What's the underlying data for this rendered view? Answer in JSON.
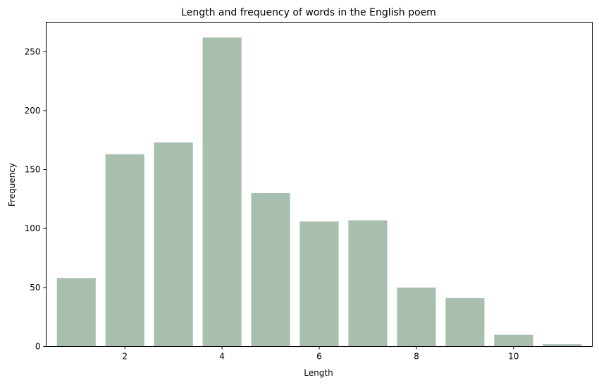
{
  "chart_data": {
    "type": "bar",
    "title": "Length and frequency of words in the English poem",
    "xlabel": "Length",
    "ylabel": "Frequency",
    "x": [
      1,
      2,
      3,
      4,
      5,
      6,
      7,
      8,
      9,
      10,
      11
    ],
    "values": [
      58,
      163,
      173,
      262,
      130,
      106,
      107,
      50,
      41,
      10,
      2
    ],
    "xlim": [
      0.38,
      11.62
    ],
    "ylim": [
      0,
      275
    ],
    "xticks": [
      2,
      4,
      6,
      8,
      10
    ],
    "xtick_labels": [
      "2",
      "4",
      "6",
      "8",
      "10"
    ],
    "yticks": [
      0,
      50,
      100,
      150,
      200,
      250
    ],
    "ytick_labels": [
      "0",
      "50",
      "100",
      "150",
      "200",
      "250"
    ],
    "bar_color": "#a8bfb0",
    "grid": false,
    "legend": "none"
  }
}
